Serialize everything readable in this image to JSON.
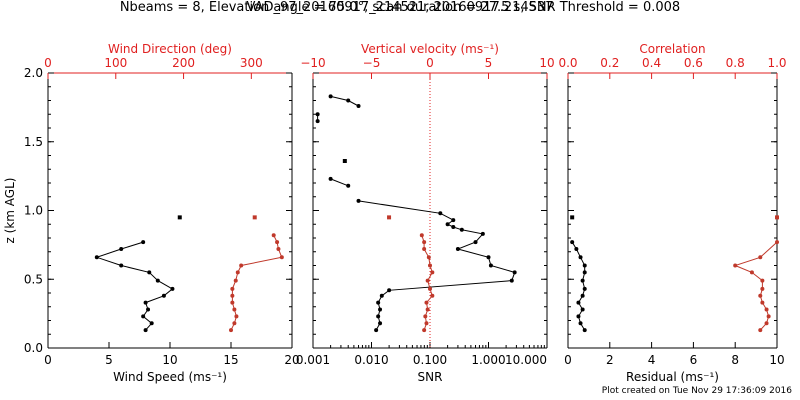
{
  "figure": {
    "title_line1": "VAD_97_20160917_214521, 20160917.214537",
    "title_line2": "Nbeams = 8, Elevation angle = 75.0°, scan duration = 27.5 s, SNR Threshold = 0.008",
    "footer": "Plot created on Tue Nov 29 17:36:09 2016"
  },
  "colors": {
    "black": "#000000",
    "red": "#e02020",
    "series_red": "#c0392b"
  },
  "chart_data": [
    {
      "id": "wind",
      "type": "line",
      "ylabel": "z (km AGL)",
      "ylim": [
        0.0,
        2.0
      ],
      "yticks": [
        "0.0",
        "0.5",
        "1.0",
        "1.5",
        "2.0"
      ],
      "xlabel_bottom": "Wind Speed (ms⁻¹)",
      "xlim_bottom": [
        0,
        20
      ],
      "xticks_bottom": [
        "0",
        "5",
        "10",
        "15",
        "20"
      ],
      "xlabel_top": "Wind Direction (deg)",
      "xlim_top": [
        0,
        360
      ],
      "xticks_top": [
        "0",
        "100",
        "200",
        "300"
      ],
      "series": [
        {
          "axis": "bottom",
          "color": "black",
          "points": [
            [
              8.0,
              0.13
            ],
            [
              8.5,
              0.18
            ],
            [
              7.8,
              0.23
            ],
            [
              8.2,
              0.28
            ],
            [
              8.0,
              0.33
            ],
            [
              9.5,
              0.38
            ],
            [
              10.2,
              0.43
            ],
            [
              9.0,
              0.49
            ],
            [
              8.3,
              0.55
            ],
            [
              6.0,
              0.6
            ],
            [
              4.0,
              0.66
            ],
            [
              6.0,
              0.72
            ],
            [
              7.8,
              0.77
            ]
          ],
          "isolated": [
            [
              10.8,
              0.95
            ]
          ]
        },
        {
          "axis": "top",
          "color": "red",
          "points": [
            [
              270,
              0.13
            ],
            [
              275,
              0.18
            ],
            [
              278,
              0.23
            ],
            [
              275,
              0.28
            ],
            [
              272,
              0.33
            ],
            [
              272,
              0.38
            ],
            [
              272,
              0.43
            ],
            [
              277,
              0.49
            ],
            [
              280,
              0.55
            ],
            [
              285,
              0.6
            ],
            [
              345,
              0.66
            ],
            [
              340,
              0.72
            ],
            [
              338,
              0.77
            ],
            [
              333,
              0.82
            ]
          ],
          "isolated": [
            [
              305,
              0.95
            ]
          ]
        }
      ]
    },
    {
      "id": "snr",
      "type": "line",
      "xscale": "log",
      "xlabel_bottom": "SNR",
      "xlim_bottom": [
        0.001,
        10.0
      ],
      "xticks_bottom": [
        "0.001",
        "0.010",
        "0.100",
        "1.000",
        "10.000"
      ],
      "xlabel_top": "Vertical velocity (ms⁻¹)",
      "xlim_top": [
        -10,
        10
      ],
      "xticks_top": [
        "−10",
        "−5",
        "0",
        "5",
        "10"
      ],
      "zero_line_top": 0,
      "series": [
        {
          "axis": "bottom",
          "color": "black",
          "segments": [
            [
              [
                0.012,
                0.13
              ],
              [
                0.014,
                0.18
              ],
              [
                0.013,
                0.23
              ],
              [
                0.014,
                0.28
              ],
              [
                0.013,
                0.33
              ],
              [
                0.015,
                0.38
              ],
              [
                0.02,
                0.42
              ],
              [
                2.5,
                0.49
              ],
              [
                2.8,
                0.55
              ],
              [
                1.1,
                0.6
              ],
              [
                1.0,
                0.66
              ],
              [
                0.3,
                0.72
              ],
              [
                0.6,
                0.77
              ],
              [
                0.8,
                0.83
              ],
              [
                0.35,
                0.86
              ],
              [
                0.25,
                0.88
              ],
              [
                0.2,
                0.9
              ],
              [
                0.25,
                0.93
              ],
              [
                0.15,
                0.98
              ],
              [
                0.006,
                1.07
              ]
            ],
            [
              [
                0.002,
                1.23
              ],
              [
                0.004,
                1.18
              ]
            ],
            [
              [
                0.0012,
                1.65
              ],
              [
                0.0012,
                1.7
              ]
            ],
            [
              [
                0.002,
                1.83
              ],
              [
                0.004,
                1.8
              ],
              [
                0.006,
                1.76
              ]
            ]
          ],
          "isolated": [
            [
              0.0035,
              1.36
            ]
          ]
        },
        {
          "axis": "top",
          "color": "red",
          "points": [
            [
              -0.5,
              0.13
            ],
            [
              -0.3,
              0.18
            ],
            [
              -0.4,
              0.23
            ],
            [
              -0.2,
              0.28
            ],
            [
              -0.3,
              0.33
            ],
            [
              0.2,
              0.38
            ],
            [
              0.0,
              0.43
            ],
            [
              -0.2,
              0.49
            ],
            [
              0.2,
              0.55
            ],
            [
              0.0,
              0.6
            ],
            [
              -0.1,
              0.66
            ],
            [
              -0.5,
              0.72
            ],
            [
              -0.5,
              0.77
            ],
            [
              -0.7,
              0.82
            ]
          ],
          "isolated": [
            [
              -3.5,
              0.95
            ]
          ]
        }
      ]
    },
    {
      "id": "residual",
      "type": "line",
      "xlabel_bottom": "Residual (ms⁻¹)",
      "xlim_bottom": [
        0,
        10
      ],
      "xticks_bottom": [
        "0",
        "2",
        "4",
        "6",
        "8",
        "10"
      ],
      "xlabel_top": "Correlation",
      "xlim_top": [
        0.0,
        1.0
      ],
      "xticks_top": [
        "0.0",
        "0.2",
        "0.4",
        "0.6",
        "0.8",
        "1.0"
      ],
      "series": [
        {
          "axis": "bottom",
          "color": "black",
          "points": [
            [
              0.8,
              0.13
            ],
            [
              0.6,
              0.18
            ],
            [
              0.5,
              0.23
            ],
            [
              0.7,
              0.28
            ],
            [
              0.5,
              0.33
            ],
            [
              0.7,
              0.38
            ],
            [
              0.8,
              0.43
            ],
            [
              0.7,
              0.49
            ],
            [
              0.8,
              0.55
            ],
            [
              0.8,
              0.6
            ],
            [
              0.6,
              0.66
            ],
            [
              0.4,
              0.72
            ],
            [
              0.2,
              0.77
            ]
          ],
          "isolated": [
            [
              0.2,
              0.95
            ]
          ]
        },
        {
          "axis": "top",
          "color": "red",
          "points": [
            [
              0.92,
              0.13
            ],
            [
              0.95,
              0.18
            ],
            [
              0.96,
              0.23
            ],
            [
              0.95,
              0.28
            ],
            [
              0.93,
              0.33
            ],
            [
              0.92,
              0.38
            ],
            [
              0.93,
              0.43
            ],
            [
              0.93,
              0.49
            ],
            [
              0.88,
              0.55
            ],
            [
              0.8,
              0.6
            ],
            [
              0.92,
              0.66
            ],
            [
              1.0,
              0.77
            ]
          ],
          "isolated": [
            [
              1.0,
              0.95
            ]
          ]
        }
      ]
    }
  ]
}
